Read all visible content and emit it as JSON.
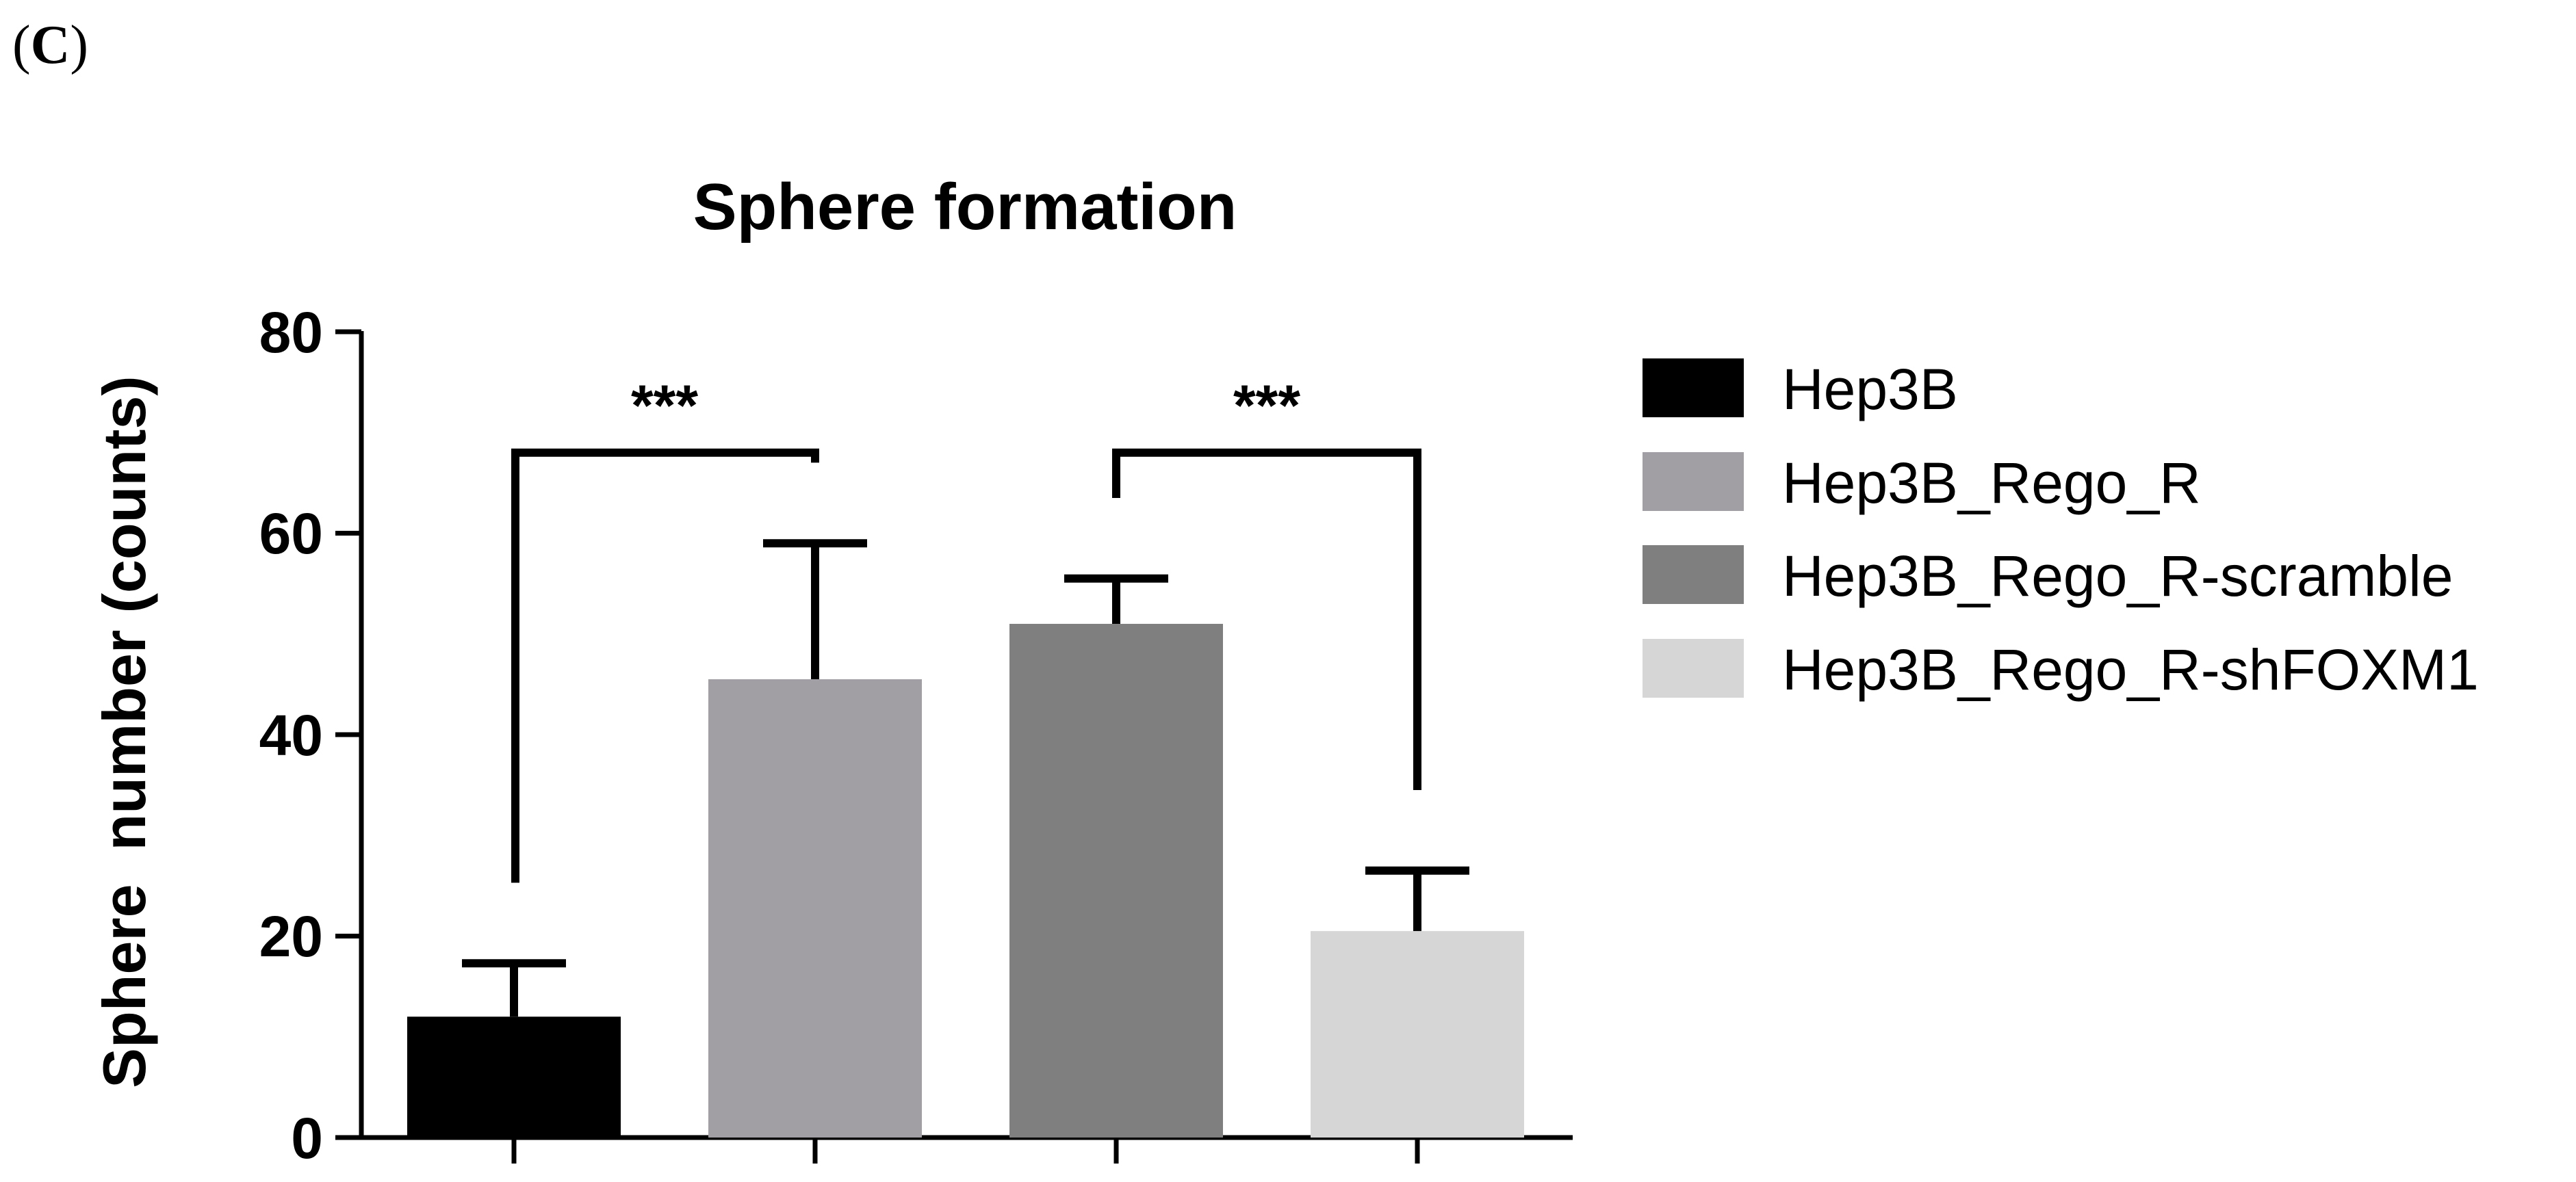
{
  "panel_label": {
    "open": "(",
    "letter": "C",
    "close": ")"
  },
  "chart_data": {
    "type": "bar",
    "title": "Sphere formation",
    "xlabel": "",
    "ylabel": "Sphere  number (counts)",
    "ylim": [
      0,
      80
    ],
    "yticks": [
      "0",
      "20",
      "40",
      "60",
      "80"
    ],
    "grid": false,
    "legend_position": "right",
    "series": [
      {
        "name": "Hep3B",
        "value": 12,
        "error": 5.3,
        "color": "#000000"
      },
      {
        "name": "Hep3B_Rego_R",
        "value": 45.5,
        "error": 13.5,
        "color": "#a19fa4"
      },
      {
        "name": "Hep3B_Rego_R-scramble",
        "value": 51,
        "error": 4.5,
        "color": "#7f7f7f"
      },
      {
        "name": "Hep3B_Rego_R-shFOXM1",
        "value": 20.5,
        "error": 6,
        "color": "#d6d6d6"
      }
    ],
    "annotations": [
      {
        "text": "***",
        "from": 0,
        "to": 1,
        "level": 68
      },
      {
        "text": "***",
        "from": 2,
        "to": 3,
        "level": 68
      }
    ]
  }
}
